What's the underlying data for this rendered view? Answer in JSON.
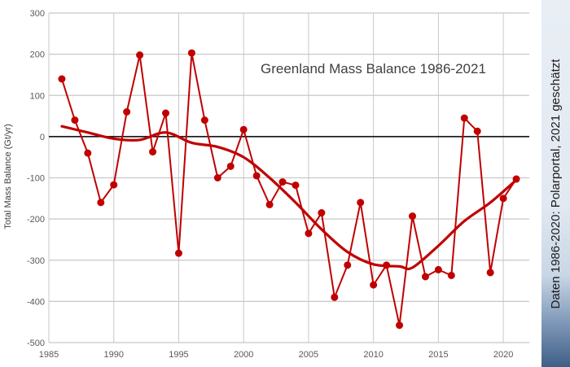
{
  "chart_data": {
    "type": "line",
    "title": "Greenland Mass Balance 1986-2021",
    "ylabel": "Total Mass Balance (Gt/yr)",
    "xlabel": "",
    "xlim": [
      1985,
      2022
    ],
    "ylim": [
      -500,
      300
    ],
    "xticks": [
      1985,
      1990,
      1995,
      2000,
      2005,
      2010,
      2015,
      2020
    ],
    "yticks": [
      300,
      200,
      100,
      0,
      -100,
      -200,
      -300,
      -400,
      -500
    ],
    "grid": "both",
    "series": [
      {
        "color": "#c00000",
        "marker": "circle",
        "x": [
          1986,
          1987,
          1988,
          1989,
          1990,
          1991,
          1992,
          1993,
          1994,
          1995,
          1996,
          1997,
          1998,
          1999,
          2000,
          2001,
          2002,
          2003,
          2004,
          2005,
          2006,
          2007,
          2008,
          2009,
          2010,
          2011,
          2012,
          2013,
          2014,
          2015,
          2016,
          2017,
          2018,
          2019,
          2020,
          2021
        ],
        "values": [
          140,
          40,
          -40,
          -160,
          -117,
          60,
          198,
          -37,
          57,
          -283,
          203,
          40,
          -100,
          -72,
          17,
          -95,
          -165,
          -110,
          -118,
          -235,
          -185,
          -390,
          -312,
          -160,
          -360,
          -312,
          -458,
          -193,
          -340,
          -323,
          -337,
          45,
          13,
          -330,
          -150,
          -103
        ]
      },
      {
        "color": "#c00000",
        "marker": "none",
        "style": "smoothed trend",
        "x": [
          1986,
          1988,
          1990,
          1992,
          1994,
          1996,
          1998,
          2000,
          2002,
          2004,
          2006,
          2008,
          2010,
          2012,
          2013,
          2015,
          2017,
          2019,
          2021
        ],
        "values": [
          25,
          10,
          -5,
          -8,
          10,
          -15,
          -25,
          -50,
          -100,
          -160,
          -225,
          -280,
          -310,
          -315,
          -318,
          -265,
          -205,
          -160,
          -105
        ]
      }
    ],
    "side_note": "Daten 1986-2020: Polarportal, 2021 geschätzt",
    "colors": {
      "series": "#c00000",
      "zero_line": "#000000",
      "grid": "#c8c8c8"
    }
  }
}
